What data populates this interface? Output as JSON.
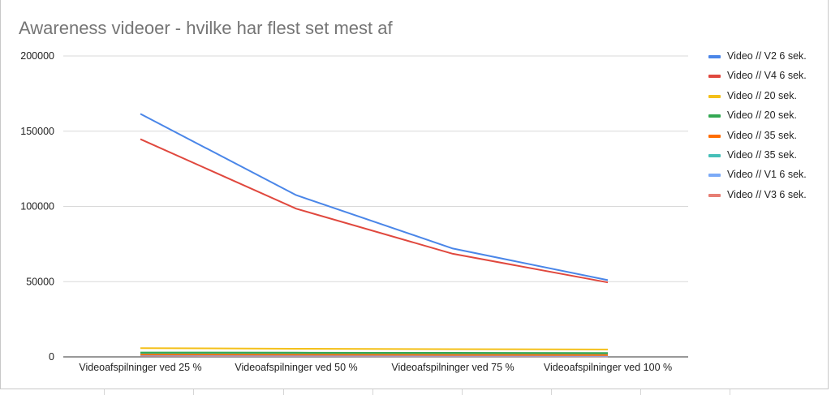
{
  "chart_data": {
    "type": "line",
    "title": "Awareness videoer - hvilke har flest set mest af",
    "xlabel": "",
    "ylabel": "",
    "categories": [
      "Videoafspilninger ved 25 %",
      "Videoafspilninger ved 50 %",
      "Videoafspilninger ved 75 %",
      "Videoafspilninger ved 100 %"
    ],
    "yticks": [
      "0",
      "50000",
      "100000",
      "150000",
      "200000"
    ],
    "ylim": [
      0,
      200000
    ],
    "grid": true,
    "legend_position": "right",
    "series": [
      {
        "name": "Video // V2 6 sek.",
        "color": "#4a86e8",
        "values": [
          161500,
          107500,
          72000,
          51000
        ]
      },
      {
        "name": "Video // V4 6 sek.",
        "color": "#e0483e",
        "values": [
          144700,
          98500,
          68500,
          49500
        ]
      },
      {
        "name": "Video // 20 sek.",
        "color": "#f4c01a",
        "values": [
          5800,
          5400,
          5100,
          4900
        ]
      },
      {
        "name": "Video // 20 sek.",
        "color": "#34a853",
        "values": [
          2900,
          2800,
          2700,
          2600
        ]
      },
      {
        "name": "Video // 35 sek.",
        "color": "#ff6d01",
        "values": [
          1500,
          1400,
          1300,
          1200
        ]
      },
      {
        "name": "Video // 35 sek.",
        "color": "#45bfb8",
        "values": [
          2200,
          2100,
          2000,
          1900
        ]
      },
      {
        "name": "Video // V1 6 sek.",
        "color": "#7baaf7",
        "values": [
          900,
          800,
          750,
          700
        ]
      },
      {
        "name": "Video // V3 6 sek.",
        "color": "#e77e74",
        "values": [
          600,
          550,
          500,
          450
        ]
      }
    ]
  }
}
